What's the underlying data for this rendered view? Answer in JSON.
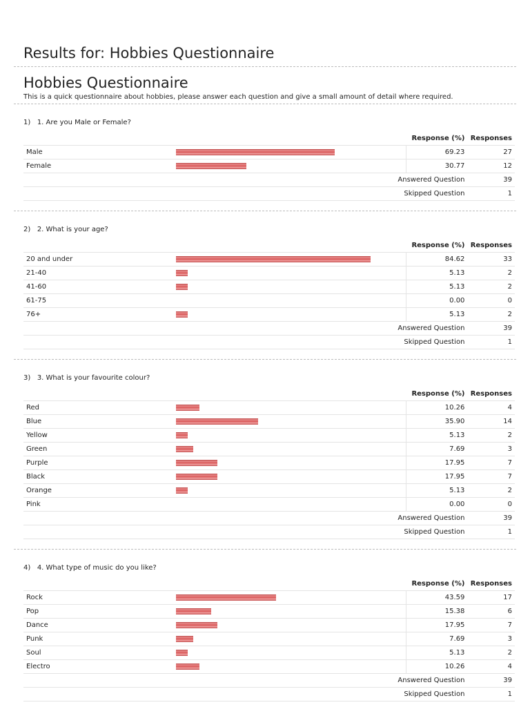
{
  "title": "Results for: Hobbies Questionnaire",
  "survey_title": "Hobbies Questionnaire",
  "description": "This is a quick questionnaire about hobbies, please answer each question and give a small amount of detail where required.",
  "headers": {
    "pct": "Response (%)",
    "count": "Responses"
  },
  "summary_labels": {
    "answered": "Answered Question",
    "skipped": "Skipped Question"
  },
  "bar_color": "#d95a5a",
  "questions": [
    {
      "number": "1)",
      "text": "1. Are you Male or Female?",
      "rows": [
        {
          "label": "Male",
          "pct": "69.23",
          "count": "27"
        },
        {
          "label": "Female",
          "pct": "30.77",
          "count": "12"
        }
      ],
      "answered": "39",
      "skipped": "1"
    },
    {
      "number": "2)",
      "text": "2. What is your age?",
      "rows": [
        {
          "label": "20 and under",
          "pct": "84.62",
          "count": "33"
        },
        {
          "label": "21-40",
          "pct": "5.13",
          "count": "2"
        },
        {
          "label": "41-60",
          "pct": "5.13",
          "count": "2"
        },
        {
          "label": "61-75",
          "pct": "0.00",
          "count": "0"
        },
        {
          "label": "76+",
          "pct": "5.13",
          "count": "2"
        }
      ],
      "answered": "39",
      "skipped": "1"
    },
    {
      "number": "3)",
      "text": "3. What is your favourite colour?",
      "rows": [
        {
          "label": "Red",
          "pct": "10.26",
          "count": "4"
        },
        {
          "label": "Blue",
          "pct": "35.90",
          "count": "14"
        },
        {
          "label": "Yellow",
          "pct": "5.13",
          "count": "2"
        },
        {
          "label": "Green",
          "pct": "7.69",
          "count": "3"
        },
        {
          "label": "Purple",
          "pct": "17.95",
          "count": "7"
        },
        {
          "label": "Black",
          "pct": "17.95",
          "count": "7"
        },
        {
          "label": "Orange",
          "pct": "5.13",
          "count": "2"
        },
        {
          "label": "Pink",
          "pct": "0.00",
          "count": "0"
        }
      ],
      "answered": "39",
      "skipped": "1"
    },
    {
      "number": "4)",
      "text": "4. What type of music do you like?",
      "rows": [
        {
          "label": "Rock",
          "pct": "43.59",
          "count": "17"
        },
        {
          "label": "Pop",
          "pct": "15.38",
          "count": "6"
        },
        {
          "label": "Dance",
          "pct": "17.95",
          "count": "7"
        },
        {
          "label": "Punk",
          "pct": "7.69",
          "count": "3"
        },
        {
          "label": "Soul",
          "pct": "5.13",
          "count": "2"
        },
        {
          "label": "Electro",
          "pct": "10.26",
          "count": "4"
        }
      ],
      "answered": "39",
      "skipped": "1"
    }
  ]
}
